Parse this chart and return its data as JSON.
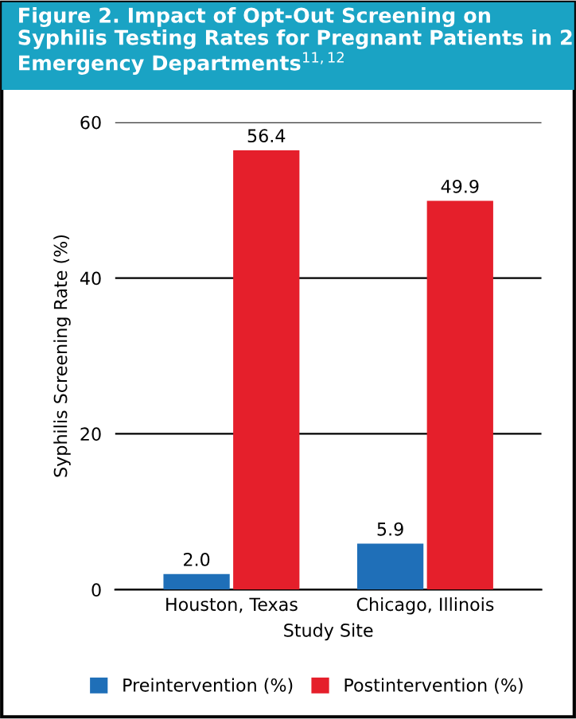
{
  "chart_data": {
    "type": "bar",
    "title": "Figure 2. Impact of Opt-Out Screening on Syphilis Testing Rates for Pregnant Patients in 2 Emergency Departments$^{11,12}$",
    "xlabel": "Study Site",
    "ylabel": "Syphilis Screening Rate (%)",
    "categories": [
      "Houston, Texas",
      "Chicago, Illinois"
    ],
    "series": [
      {
        "name": "Preintervention (%)",
        "color": "#1f6fb8",
        "values": [
          2.0,
          5.9
        ],
        "value_labels": [
          "2.0",
          "5.9"
        ]
      },
      {
        "name": "Postintervention (%)",
        "color": "#e51f2b",
        "values": [
          56.4,
          49.9
        ],
        "value_labels": [
          "56.4",
          "49.9"
        ]
      }
    ],
    "ylim": [
      0,
      60
    ],
    "yticks": [
      0,
      20,
      40,
      60
    ],
    "grid": "y",
    "legend": "bottom"
  }
}
